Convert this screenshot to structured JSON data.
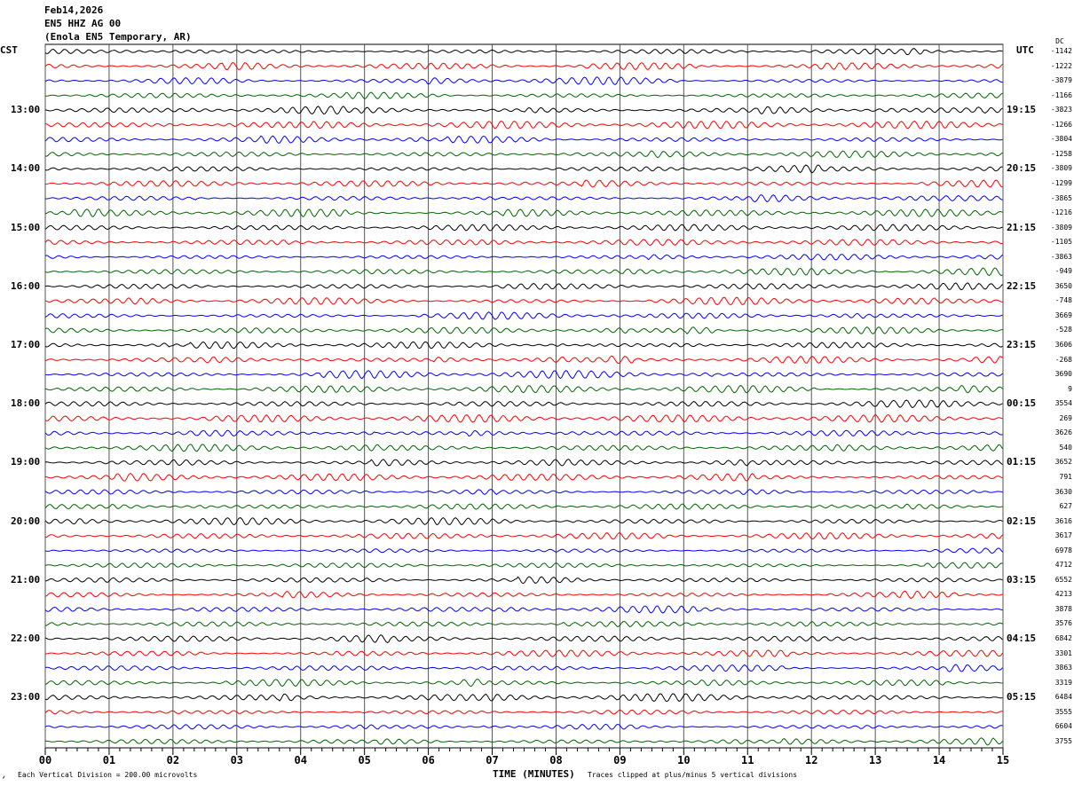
{
  "header": {
    "date": "Feb14,2026",
    "station": "EN5 HHZ AG 00",
    "location": "(Enola EN5 Temporary, AR)"
  },
  "left_tz": "CST",
  "right_tz": "UTC",
  "dc_header": "DC",
  "footer": {
    "scale": "Each Vertical Division =  200.00 microvolts",
    "xlabel": "TIME (MINUTES)",
    "clip_note": "Traces clipped at plus/minus 5 vertical divisions"
  },
  "chart_data": {
    "type": "line",
    "xlabel": "TIME (MINUTES)",
    "xlim": [
      0,
      15
    ],
    "x_ticks": [
      "00",
      "01",
      "02",
      "03",
      "04",
      "05",
      "06",
      "07",
      "08",
      "09",
      "10",
      "11",
      "12",
      "13",
      "14",
      "15"
    ],
    "grid": true,
    "trace_colors": [
      "#000000",
      "#ff0000",
      "#0000ff",
      "#006400"
    ],
    "left_hour_labels": [
      "13:00",
      "14:00",
      "15:00",
      "16:00",
      "17:00",
      "18:00",
      "19:00",
      "20:00",
      "21:00",
      "22:00",
      "23:00"
    ],
    "right_hour_labels": [
      "19:15",
      "20:15",
      "21:15",
      "22:15",
      "23:15",
      "00:15",
      "01:15",
      "02:15",
      "03:15",
      "04:15",
      "05:15"
    ],
    "dc_offsets": [
      "-1142",
      "-1222",
      "-3879",
      "-1166",
      "-3823",
      "-1266",
      "-3804",
      "-1258",
      "-3809",
      "-1299",
      "-3865",
      "-1216",
      "-3809",
      "-1105",
      "-3863",
      "-949",
      "3650",
      "-748",
      "3669",
      "-528",
      "3606",
      "-268",
      "3690",
      "9",
      "3554",
      "269",
      "3626",
      "540",
      "3652",
      "791",
      "3630",
      "627",
      "3616",
      "3617",
      "6978",
      "4712",
      "6552",
      "4213",
      "3878",
      "3576",
      "6842",
      "3301",
      "3863",
      "3319",
      "6484",
      "3555",
      "6604",
      "3755"
    ]
  }
}
